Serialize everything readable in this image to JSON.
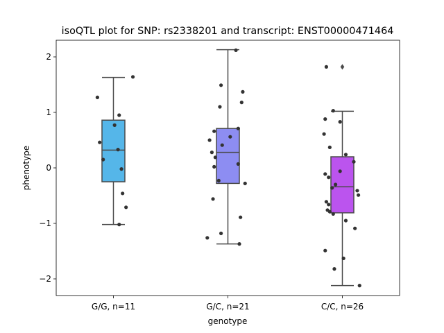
{
  "chart_data": {
    "type": "box+strip",
    "title": "isoQTL plot for SNP: rs2338201 and transcript: ENST00000471464",
    "xlabel": "genotype",
    "ylabel": "phenotype",
    "ylim": [
      -2.3,
      2.3
    ],
    "yticks": [
      -2,
      -1,
      0,
      1,
      2
    ],
    "ytick_labels": [
      "−2",
      "−1",
      "0",
      "1",
      "2"
    ],
    "grid": false,
    "categories": [
      "G/G, n=11",
      "G/C, n=21",
      "C/C, n=26"
    ],
    "colors": [
      "#55b6e9",
      "#8d8df2",
      "#bb54ee"
    ],
    "boxes": [
      {
        "whislo": -1.02,
        "q1": -0.25,
        "med": 0.32,
        "q3": 0.86,
        "whishi": 1.63,
        "fliers": []
      },
      {
        "whislo": -1.37,
        "q1": -0.28,
        "med": 0.28,
        "q3": 0.71,
        "whishi": 2.13,
        "fliers": []
      },
      {
        "whislo": -2.12,
        "q1": -0.81,
        "med": -0.34,
        "q3": 0.2,
        "whishi": 1.02,
        "fliers": [
          1.82
        ]
      }
    ],
    "points": [
      [
        1.64,
        1.27,
        0.95,
        0.77,
        0.46,
        0.33,
        0.15,
        -0.02,
        -0.46,
        -0.71,
        -1.02
      ],
      [
        2.12,
        1.49,
        1.37,
        1.18,
        1.1,
        0.71,
        0.66,
        0.56,
        0.5,
        0.41,
        0.28,
        0.19,
        0.07,
        0.02,
        -0.23,
        -0.28,
        -0.56,
        -0.89,
        -1.18,
        -1.26,
        -1.37
      ],
      [
        1.82,
        1.03,
        0.88,
        0.83,
        0.61,
        0.37,
        0.24,
        0.11,
        -0.06,
        -0.11,
        -0.17,
        -0.3,
        -0.36,
        -0.41,
        -0.49,
        -0.61,
        -0.66,
        -0.76,
        -0.79,
        -0.83,
        -0.95,
        -1.09,
        -1.49,
        -1.63,
        -1.82,
        -2.12
      ]
    ],
    "jitter": [
      [
        0.17,
        -0.14,
        0.05,
        0.01,
        -0.12,
        0.04,
        -0.09,
        0.07,
        0.08,
        0.11,
        0.05
      ],
      [
        0.07,
        -0.06,
        0.13,
        0.12,
        -0.07,
        0.09,
        -0.12,
        0.02,
        -0.16,
        -0.05,
        -0.14,
        -0.11,
        0.09,
        -0.12,
        -0.08,
        0.15,
        -0.13,
        0.11,
        -0.06,
        -0.18,
        0.1
      ],
      [
        -0.14,
        -0.08,
        -0.15,
        -0.02,
        -0.16,
        -0.11,
        0.03,
        0.1,
        -0.02,
        -0.15,
        -0.12,
        -0.06,
        -0.09,
        0.13,
        0.14,
        -0.14,
        -0.12,
        -0.13,
        -0.11,
        -0.08,
        0.03,
        0.11,
        -0.15,
        0.01,
        -0.07,
        0.15
      ]
    ],
    "outline_color": "#4a4a4a",
    "point_color": "#333333"
  }
}
